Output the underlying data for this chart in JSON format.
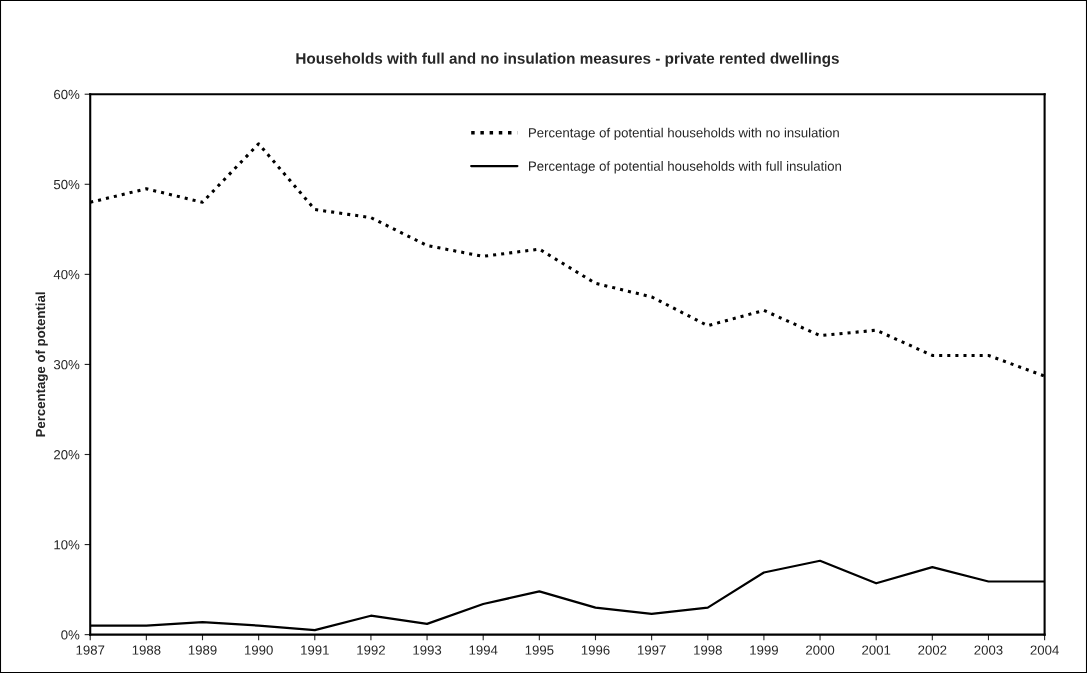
{
  "chart_data": {
    "type": "line",
    "title": "Households with full and no insulation measures - private rented dwellings",
    "ylabel": "Percentage of potential",
    "x": [
      1987,
      1988,
      1989,
      1990,
      1991,
      1992,
      1993,
      1994,
      1995,
      1996,
      1997,
      1998,
      1999,
      2000,
      2001,
      2002,
      2003,
      2004
    ],
    "series": [
      {
        "name": "Percentage of potential households with no insulation",
        "color": "#000000",
        "line_style": "dotted",
        "values": [
          48,
          49.5,
          48,
          54.5,
          47.2,
          46.3,
          43.2,
          42,
          42.8,
          39,
          37.5,
          34.3,
          36,
          33.2,
          33.8,
          31,
          31,
          28.7
        ]
      },
      {
        "name": "Percentage of potential households with full insulation",
        "color": "#000000",
        "line_style": "solid",
        "values": [
          1,
          1,
          1.4,
          1,
          0.5,
          2.1,
          1.2,
          3.4,
          4.8,
          3,
          2.3,
          3,
          6.9,
          8.2,
          5.7,
          7.5,
          5.9,
          5.9
        ]
      }
    ],
    "xlim": [
      1987,
      2004
    ],
    "xticks": [
      1987,
      1988,
      1989,
      1990,
      1991,
      1992,
      1993,
      1994,
      1995,
      1996,
      1997,
      1998,
      1999,
      2000,
      2001,
      2002,
      2003,
      2004
    ],
    "ylim": [
      0,
      60
    ],
    "yticks": [
      {
        "value": 0,
        "label": "0%"
      },
      {
        "value": 10,
        "label": "10%"
      },
      {
        "value": 20,
        "label": "20%"
      },
      {
        "value": 30,
        "label": "30%"
      },
      {
        "value": 40,
        "label": "40%"
      },
      {
        "value": 50,
        "label": "50%"
      },
      {
        "value": 60,
        "label": "60%"
      }
    ],
    "grid": false,
    "legend": "top right"
  }
}
